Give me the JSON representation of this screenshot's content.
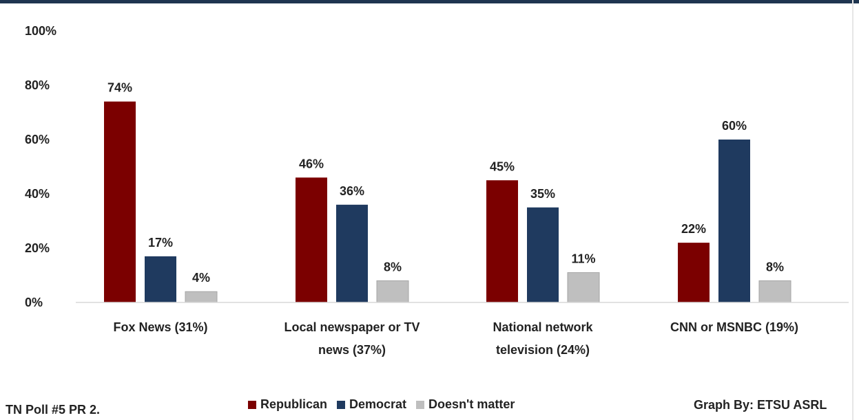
{
  "chart_data": {
    "type": "bar",
    "title": "",
    "xlabel": "",
    "ylabel": "",
    "categories": [
      "Fox News (31%)",
      "Local newspaper or TV news (37%)",
      "National network television (24%)",
      "CNN or MSNBC (19%)"
    ],
    "category_lines": [
      [
        "Fox News (31%)"
      ],
      [
        "Local newspaper or TV",
        "news (37%)"
      ],
      [
        "National network",
        "television (24%)"
      ],
      [
        "CNN or MSNBC (19%)"
      ]
    ],
    "series": [
      {
        "name": "Republican",
        "color": "#7b0000",
        "values": [
          74,
          46,
          45,
          22
        ],
        "labels": [
          "74%",
          "46%",
          "45%",
          "22%"
        ]
      },
      {
        "name": "Democrat",
        "color": "#1f3a5f",
        "values": [
          17,
          36,
          35,
          60
        ],
        "labels": [
          "17%",
          "36%",
          "35%",
          "60%"
        ]
      },
      {
        "name": "Doesn't matter",
        "color": "#bfbfbf",
        "values": [
          4,
          8,
          11,
          8
        ],
        "labels": [
          "4%",
          "8%",
          "11%",
          "8%"
        ]
      }
    ],
    "ylim": [
      0,
      100
    ],
    "yticks": [
      0,
      20,
      40,
      60,
      80,
      100
    ],
    "ytick_labels": [
      "0%",
      "20%",
      "40%",
      "60%",
      "80%",
      "100%"
    ],
    "grid": false,
    "legend_position": "bottom"
  },
  "footer": {
    "source_note": "TN Poll #5 PR 2.",
    "credit": "Graph By: ETSU ASRL"
  }
}
